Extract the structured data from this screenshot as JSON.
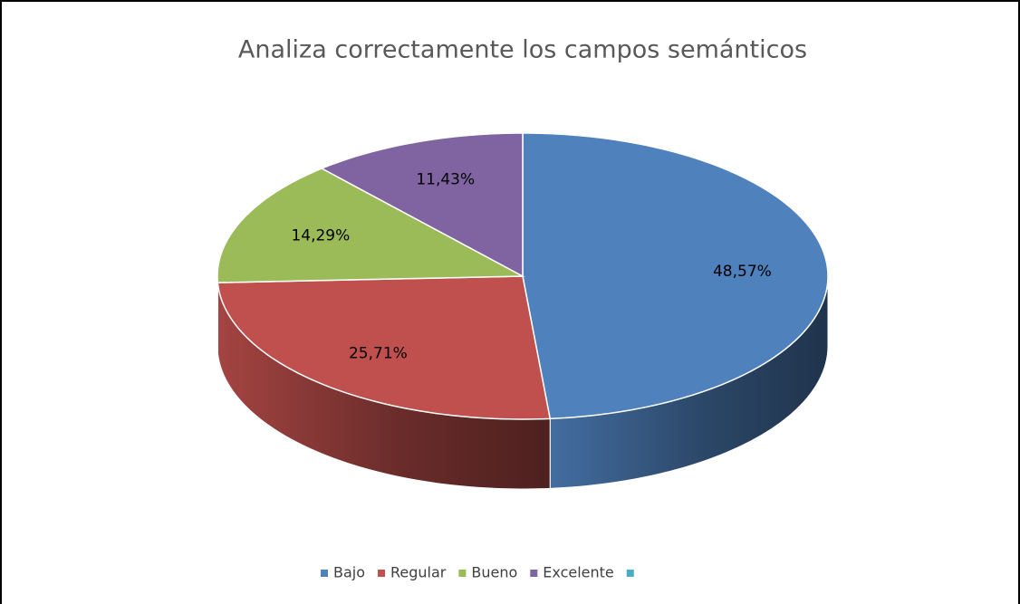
{
  "chart_data": {
    "type": "pie3d",
    "title": "Analiza correctamente los campos semánticos",
    "categories": [
      "Bajo",
      "Regular",
      "Bueno",
      "Excelente",
      null
    ],
    "values": [
      48.57,
      25.71,
      14.29,
      11.43,
      0
    ],
    "value_labels": [
      "48,57%",
      "25,71%",
      "14,29%",
      "11,43%",
      null
    ],
    "colors": [
      "#4f81bd",
      "#c0504d",
      "#9bbb59",
      "#8064a2",
      "#4bacc6"
    ],
    "legend": "bottom"
  }
}
